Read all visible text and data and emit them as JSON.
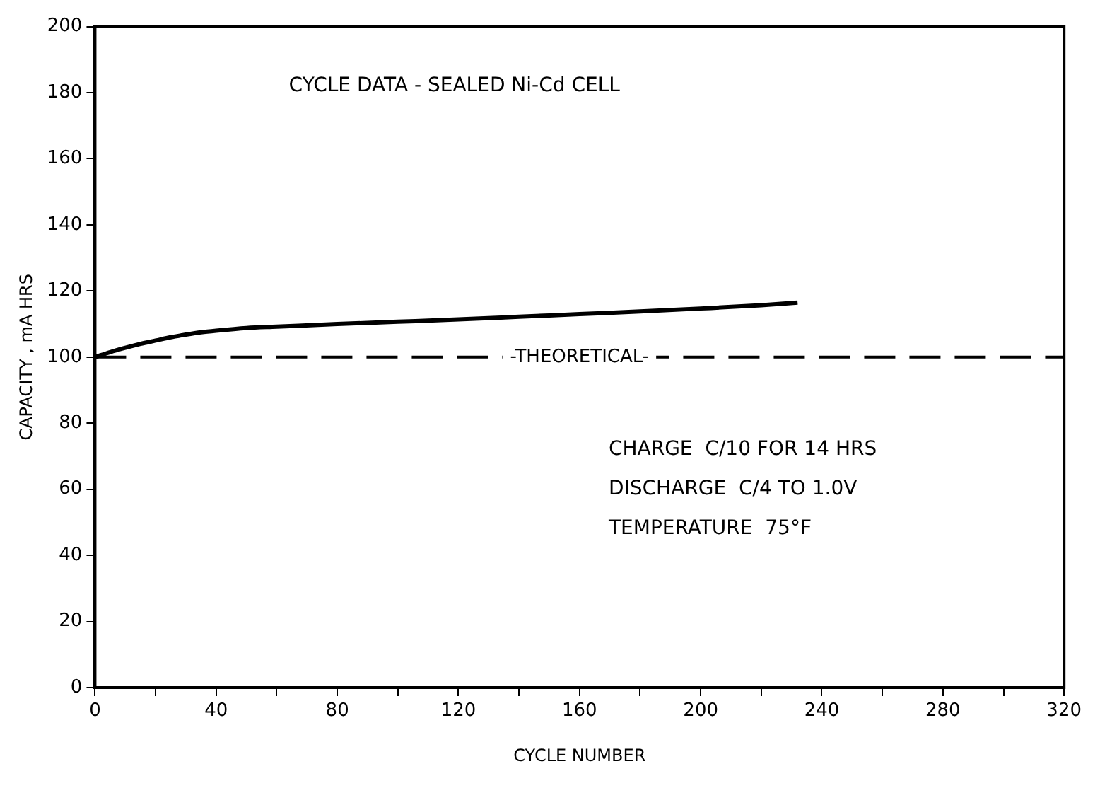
{
  "chart_data": {
    "type": "line",
    "title": "CYCLE DATA - SEALED Ni-Cd CELL",
    "xlabel": "CYCLE NUMBER",
    "ylabel": "CAPACITY , mA HRS",
    "x": [
      0,
      5,
      10,
      15,
      20,
      25,
      30,
      35,
      40,
      50,
      60,
      80,
      100,
      120,
      140,
      160,
      180,
      200,
      220,
      232
    ],
    "series": [
      {
        "color": "#000000",
        "values": [
          100,
          101.5,
          102.8,
          104,
          105,
          106,
          106.8,
          107.5,
          108,
          108.8,
          109.2,
          110,
          110.7,
          111.4,
          112.2,
          113,
          113.8,
          114.7,
          115.7,
          116.5
        ]
      }
    ],
    "xlim": [
      0,
      320
    ],
    "xticks": [
      0,
      {
        "value": 20,
        "label": null
      },
      40,
      {
        "value": 60,
        "label": null
      },
      80,
      {
        "value": 100,
        "label": null
      },
      120,
      {
        "value": 140,
        "label": null
      },
      160,
      {
        "value": 180,
        "label": null
      },
      200,
      {
        "value": 220,
        "label": null
      },
      240,
      {
        "value": 260,
        "label": null
      },
      280,
      {
        "value": 300,
        "label": null
      },
      320
    ],
    "ylim": [
      0,
      200
    ],
    "yticks": [
      0,
      20,
      40,
      60,
      80,
      100,
      120,
      140,
      160,
      180,
      200
    ],
    "grid": false,
    "legend": false,
    "marker": "none",
    "line_style": "solid",
    "ref_lines": [
      {
        "axis": "y",
        "value": 100,
        "label": "-THEORETICAL-",
        "color": "#000000",
        "line_style": "dashed"
      }
    ],
    "annotations": [
      "CHARGE  C/10 FOR 14 HRS",
      "DISCHARGE  C/4 TO 1.0V",
      "TEMPERATURE  75°F"
    ]
  }
}
